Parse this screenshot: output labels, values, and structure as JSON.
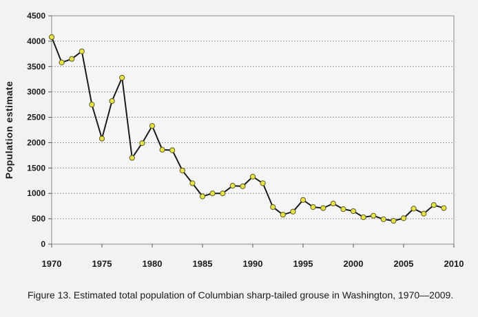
{
  "chart_data": {
    "type": "line",
    "title": "",
    "xlabel": "",
    "ylabel": "Population  estimate",
    "xlim": [
      1970,
      2010
    ],
    "ylim": [
      0,
      4500
    ],
    "x_ticks": [
      1970,
      1975,
      1980,
      1985,
      1990,
      1995,
      2000,
      2005,
      2010
    ],
    "y_ticks": [
      0,
      500,
      1000,
      1500,
      2000,
      2500,
      3000,
      3500,
      4000,
      4500
    ],
    "grid": "horizontal dashed",
    "legend": "none",
    "line_color": "#1a1a1a",
    "marker_color": "#e8e34a",
    "x": [
      1970,
      1971,
      1972,
      1973,
      1974,
      1975,
      1976,
      1977,
      1978,
      1979,
      1980,
      1981,
      1982,
      1983,
      1984,
      1985,
      1986,
      1987,
      1988,
      1989,
      1990,
      1991,
      1992,
      1993,
      1994,
      1995,
      1996,
      1997,
      1998,
      1999,
      2000,
      2001,
      2002,
      2003,
      2004,
      2005,
      2006,
      2007,
      2008,
      2009
    ],
    "series": [
      {
        "values": [
          4080,
          3580,
          3650,
          3800,
          2750,
          2080,
          2820,
          3280,
          1700,
          1990,
          2330,
          1860,
          1850,
          1450,
          1200,
          940,
          1000,
          1000,
          1150,
          1140,
          1330,
          1200,
          730,
          580,
          640,
          870,
          730,
          710,
          800,
          690,
          650,
          530,
          560,
          490,
          460,
          510,
          700,
          600,
          770,
          710
        ]
      }
    ]
  },
  "caption": "Figure 13. Estimated  total population of Columbian sharp-tailed grouse in Washington, 1970—2009."
}
